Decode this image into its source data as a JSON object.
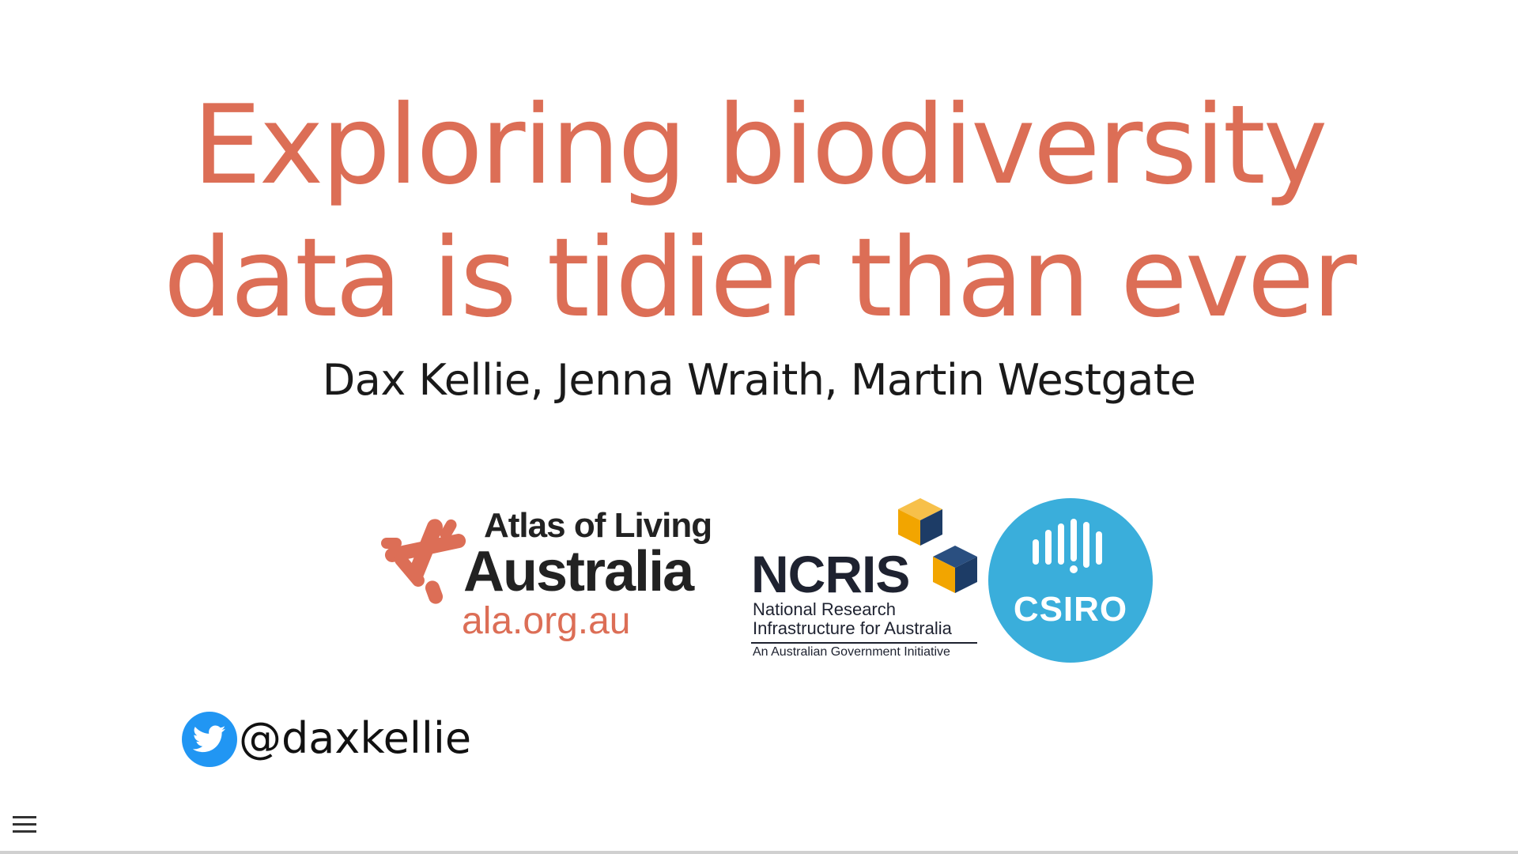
{
  "slide": {
    "title_line1": "Exploring biodiversity",
    "title_line2": "data is tidier than ever",
    "authors": "Dax Kellie, Jenna Wraith, Martin Westgate",
    "title_color": "#dc6e56"
  },
  "logos": {
    "ala": {
      "line1": "Atlas of Living",
      "line2": "Australia",
      "line3": "ala.org.au",
      "accent": "#dc6e56"
    },
    "ncris": {
      "word": "NCRIS",
      "sub1": "National Research",
      "sub2": "Infrastructure for Australia",
      "sub3": "An Australian Government Initiative",
      "cube_colors": [
        "#f2a500",
        "#1d3c66"
      ]
    },
    "csiro": {
      "word": "CSIRO",
      "color": "#3aaedb"
    }
  },
  "social": {
    "icon": "twitter-icon",
    "handle": "@daxkellie",
    "icon_color": "#2196f3"
  },
  "controls": {
    "menu_icon": "hamburger-menu-icon"
  }
}
